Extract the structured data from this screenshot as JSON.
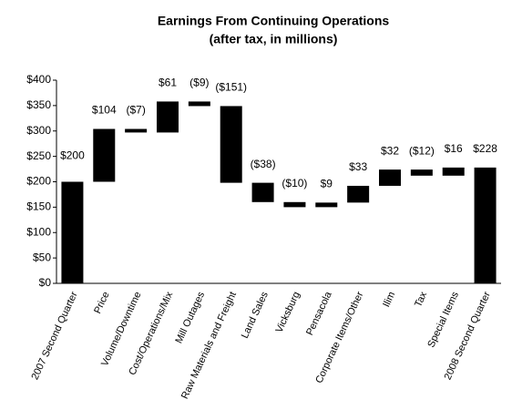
{
  "chart_data": {
    "type": "waterfall",
    "title": "Earnings From Continuing Operations",
    "subtitle": "(after tax, in millions)",
    "categories": [
      "2007 Second Quarter",
      "Price",
      "Volume/Downtime",
      "Cost/Operations/Mix",
      "Mill Outages",
      "Raw Materials and Freight",
      "Land Sales",
      "Vicksburg",
      "Pensacola",
      "Corporate Items/Other",
      "Ilim",
      "Tax",
      "Special Items",
      "2008 Second Quarter"
    ],
    "values": [
      200,
      104,
      -7,
      61,
      -9,
      -151,
      -38,
      -10,
      9,
      33,
      32,
      -12,
      16,
      228
    ],
    "value_labels": [
      "$200",
      "$104",
      "($7)",
      "$61",
      "($9)",
      "($151)",
      "($38)",
      "($10)",
      "$9",
      "$33",
      "$32",
      "($12)",
      "$16",
      "$228"
    ],
    "color": "#000000",
    "ylim": [
      0,
      400
    ],
    "yticks": [
      {
        "value": 0,
        "label": "$0"
      },
      {
        "value": 50,
        "label": "$50"
      },
      {
        "value": 100,
        "label": "$100"
      },
      {
        "value": 150,
        "label": "$150"
      },
      {
        "value": 200,
        "label": "$200"
      },
      {
        "value": 250,
        "label": "$250"
      },
      {
        "value": 300,
        "label": "$300"
      },
      {
        "value": 350,
        "label": "$350"
      },
      {
        "value": 400,
        "label": "$400"
      }
    ],
    "grid": false
  }
}
